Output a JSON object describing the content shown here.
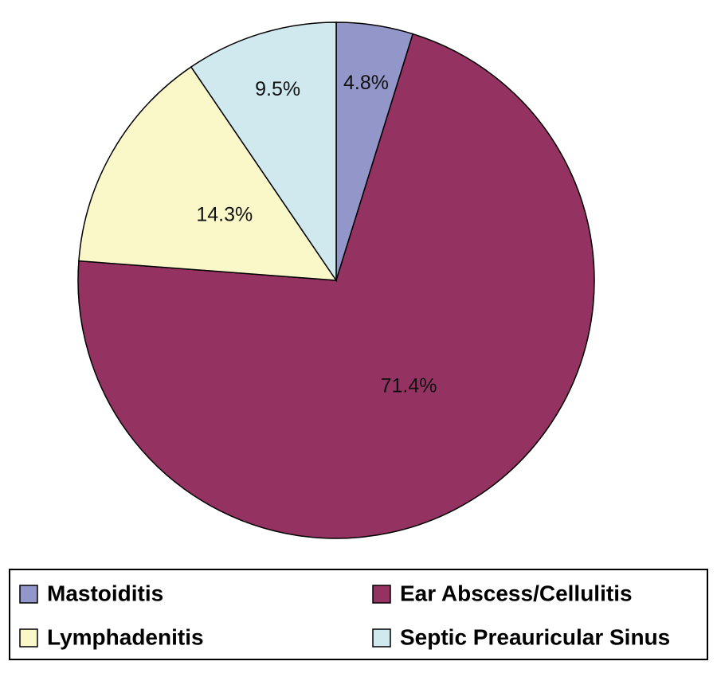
{
  "chart_data": {
    "type": "pie",
    "categories": [
      "Mastoiditis",
      "Ear Abscess/Cellulitis",
      "Lymphadenitis",
      "Septic Preauricular Sinus"
    ],
    "values": [
      4.8,
      71.4,
      14.3,
      9.5
    ],
    "value_labels": [
      "4.8%",
      "71.4%",
      "14.3%",
      "9.5%"
    ],
    "colors": [
      "#9396c9",
      "#943262",
      "#faf7c9",
      "#d0e9ef"
    ]
  }
}
